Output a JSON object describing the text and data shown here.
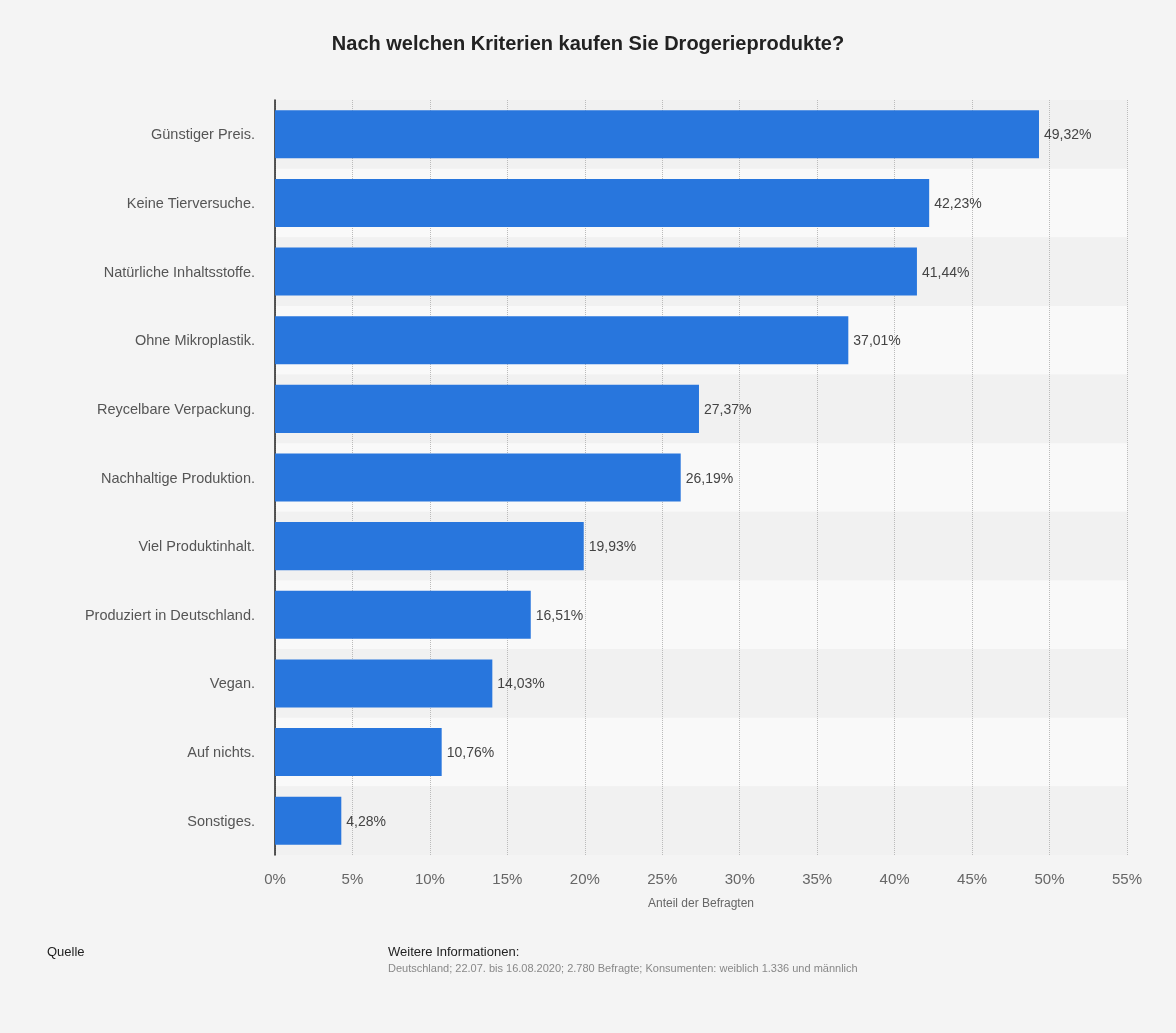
{
  "chart_data": {
    "type": "bar",
    "orientation": "horizontal",
    "title": "Nach welchen Kriterien kaufen Sie Drogerieprodukte?",
    "categories": [
      "Günstiger Preis.",
      "Keine Tierversuche.",
      "Natürliche Inhaltsstoffe.",
      "Ohne Mikroplastik.",
      "Reycelbare Verpackung.",
      "Nachhaltige Produktion.",
      "Viel Produktinhalt.",
      "Produziert in Deutschland.",
      "Vegan.",
      "Auf nichts.",
      "Sonstiges."
    ],
    "values": [
      49.32,
      42.23,
      41.44,
      37.01,
      27.37,
      26.19,
      19.93,
      16.51,
      14.03,
      10.76,
      4.28
    ],
    "value_labels": [
      "49,32%",
      "42,23%",
      "41,44%",
      "37,01%",
      "27,37%",
      "26,19%",
      "19,93%",
      "16,51%",
      "14,03%",
      "10,76%",
      "4,28%"
    ],
    "color": "#2876dd",
    "xlabel": "Anteil der Befragten",
    "xlim": [
      0,
      55
    ],
    "xticks": [
      {
        "value": 0,
        "label": "0%"
      },
      {
        "value": 5,
        "label": "5%"
      },
      {
        "value": 10,
        "label": "10%"
      },
      {
        "value": 15,
        "label": "15%"
      },
      {
        "value": 20,
        "label": "20%"
      },
      {
        "value": 25,
        "label": "25%"
      },
      {
        "value": 30,
        "label": "30%"
      },
      {
        "value": 35,
        "label": "35%"
      },
      {
        "value": 40,
        "label": "40%"
      },
      {
        "value": 45,
        "label": "45%"
      },
      {
        "value": 50,
        "label": "50%"
      },
      {
        "value": 55,
        "label": "55%"
      }
    ],
    "grid": "x",
    "annotations": [
      "Quelle",
      "Weitere Informationen:",
      "Deutschland; 22.07. bis 16.08.2020; 2.780 Befragte; Konsumenten: weiblich 1.336 und männlich"
    ]
  }
}
